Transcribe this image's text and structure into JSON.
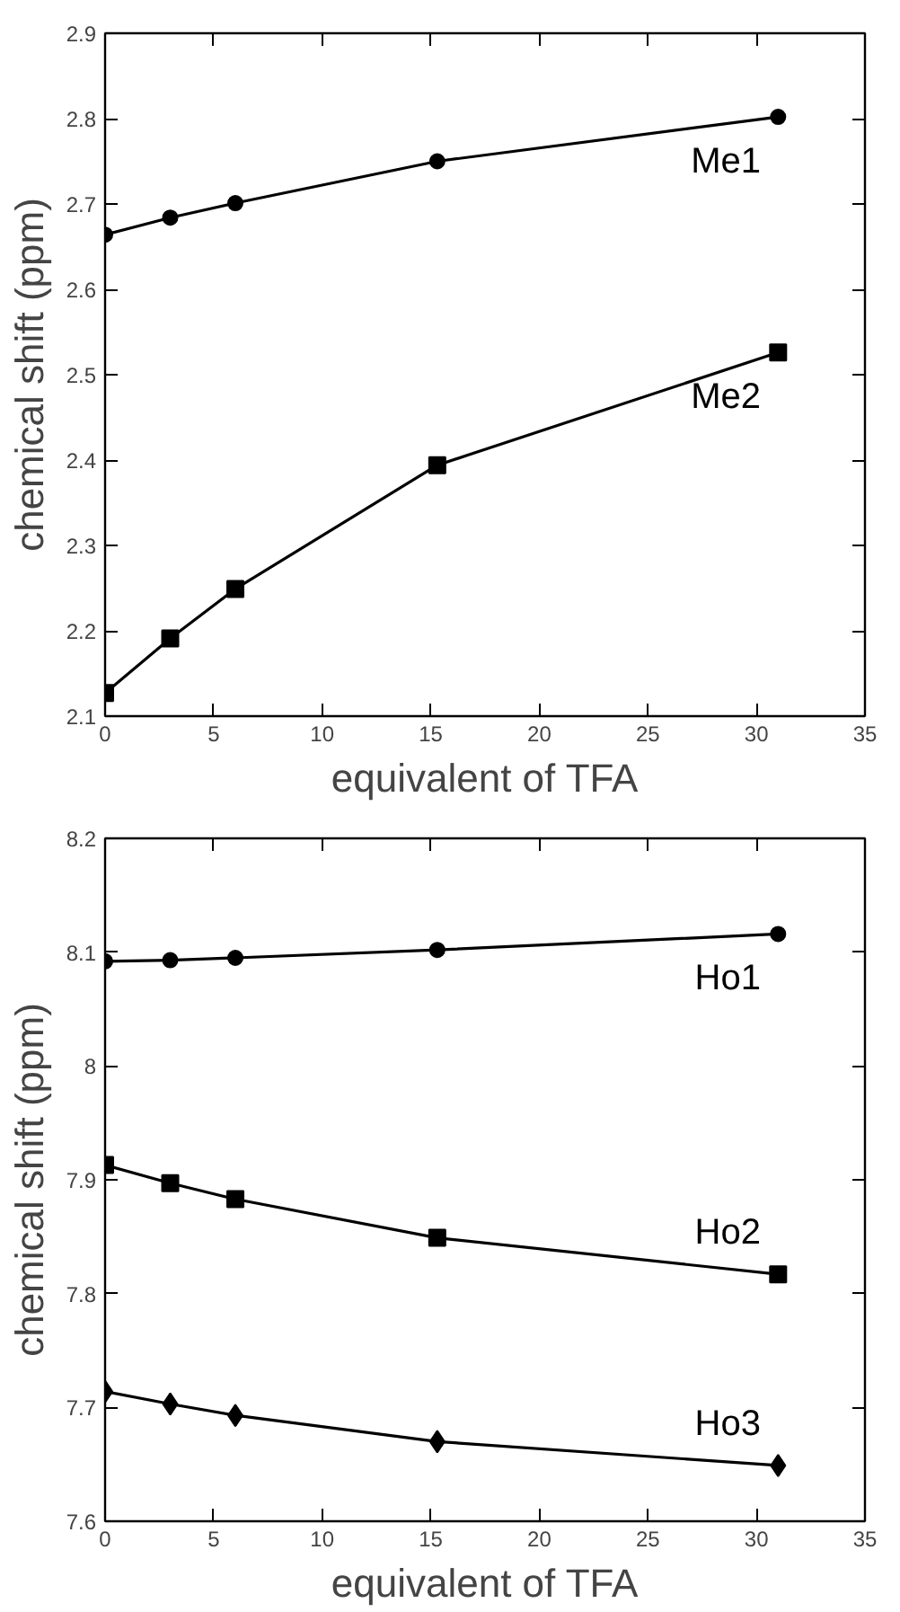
{
  "chart_data": [
    {
      "type": "line",
      "xlabel": "equivalent of TFA",
      "ylabel": "chemical shift (ppm)",
      "x": [
        0,
        3,
        6,
        15.3,
        31
      ],
      "xlim": [
        0,
        35
      ],
      "xticks": [
        0,
        5,
        10,
        15,
        20,
        25,
        30,
        35
      ],
      "ylim": [
        2.1,
        2.9
      ],
      "yticks": [
        {
          "value": 2.1,
          "label": "2.1"
        },
        {
          "value": 2.2,
          "label": "2.2"
        },
        {
          "value": 2.3,
          "label": "2.3"
        },
        {
          "value": 2.4,
          "label": "2.4"
        },
        {
          "value": 2.5,
          "label": "2.5"
        },
        {
          "value": 2.6,
          "label": "2.6"
        },
        {
          "value": 2.7,
          "label": "2.7"
        },
        {
          "value": 2.8,
          "label": "2.8"
        },
        {
          "value": 2.9,
          "label": "2.9"
        }
      ],
      "grid": false,
      "legend": false,
      "line_style": "solid",
      "series": [
        {
          "name": "Me1",
          "color": "#000000",
          "marker": "circle",
          "values": [
            2.664,
            2.684,
            2.701,
            2.75,
            2.802
          ]
        },
        {
          "name": "Me2",
          "color": "#000000",
          "marker": "square",
          "values": [
            2.127,
            2.191,
            2.249,
            2.394,
            2.526
          ]
        }
      ]
    },
    {
      "type": "line",
      "xlabel": "equivalent of TFA",
      "ylabel": "chemical shift (ppm)",
      "x": [
        0,
        3,
        6,
        15.3,
        31
      ],
      "xlim": [
        0,
        35
      ],
      "xticks": [
        0,
        5,
        10,
        15,
        20,
        25,
        30,
        35
      ],
      "ylim": [
        7.6,
        8.2
      ],
      "yticks": [
        {
          "value": 7.6,
          "label": "7.6"
        },
        {
          "value": 7.7,
          "label": "7.7"
        },
        {
          "value": 7.8,
          "label": "7.8"
        },
        {
          "value": 7.9,
          "label": "7.9"
        },
        8,
        {
          "value": 8.1,
          "label": "8.1"
        },
        {
          "value": 8.2,
          "label": "8.2"
        }
      ],
      "grid": false,
      "legend": false,
      "line_style": "solid",
      "series": [
        {
          "name": "Ho1",
          "color": "#000000",
          "marker": "circle",
          "values": [
            8.092,
            8.093,
            8.095,
            8.102,
            8.116
          ]
        },
        {
          "name": "Ho2",
          "color": "#000000",
          "marker": "square",
          "values": [
            7.913,
            7.897,
            7.883,
            7.849,
            7.817
          ]
        },
        {
          "name": "Ho3",
          "color": "#000000",
          "marker": "diamond",
          "values": [
            7.714,
            7.703,
            7.693,
            7.67,
            7.649
          ]
        }
      ]
    }
  ]
}
